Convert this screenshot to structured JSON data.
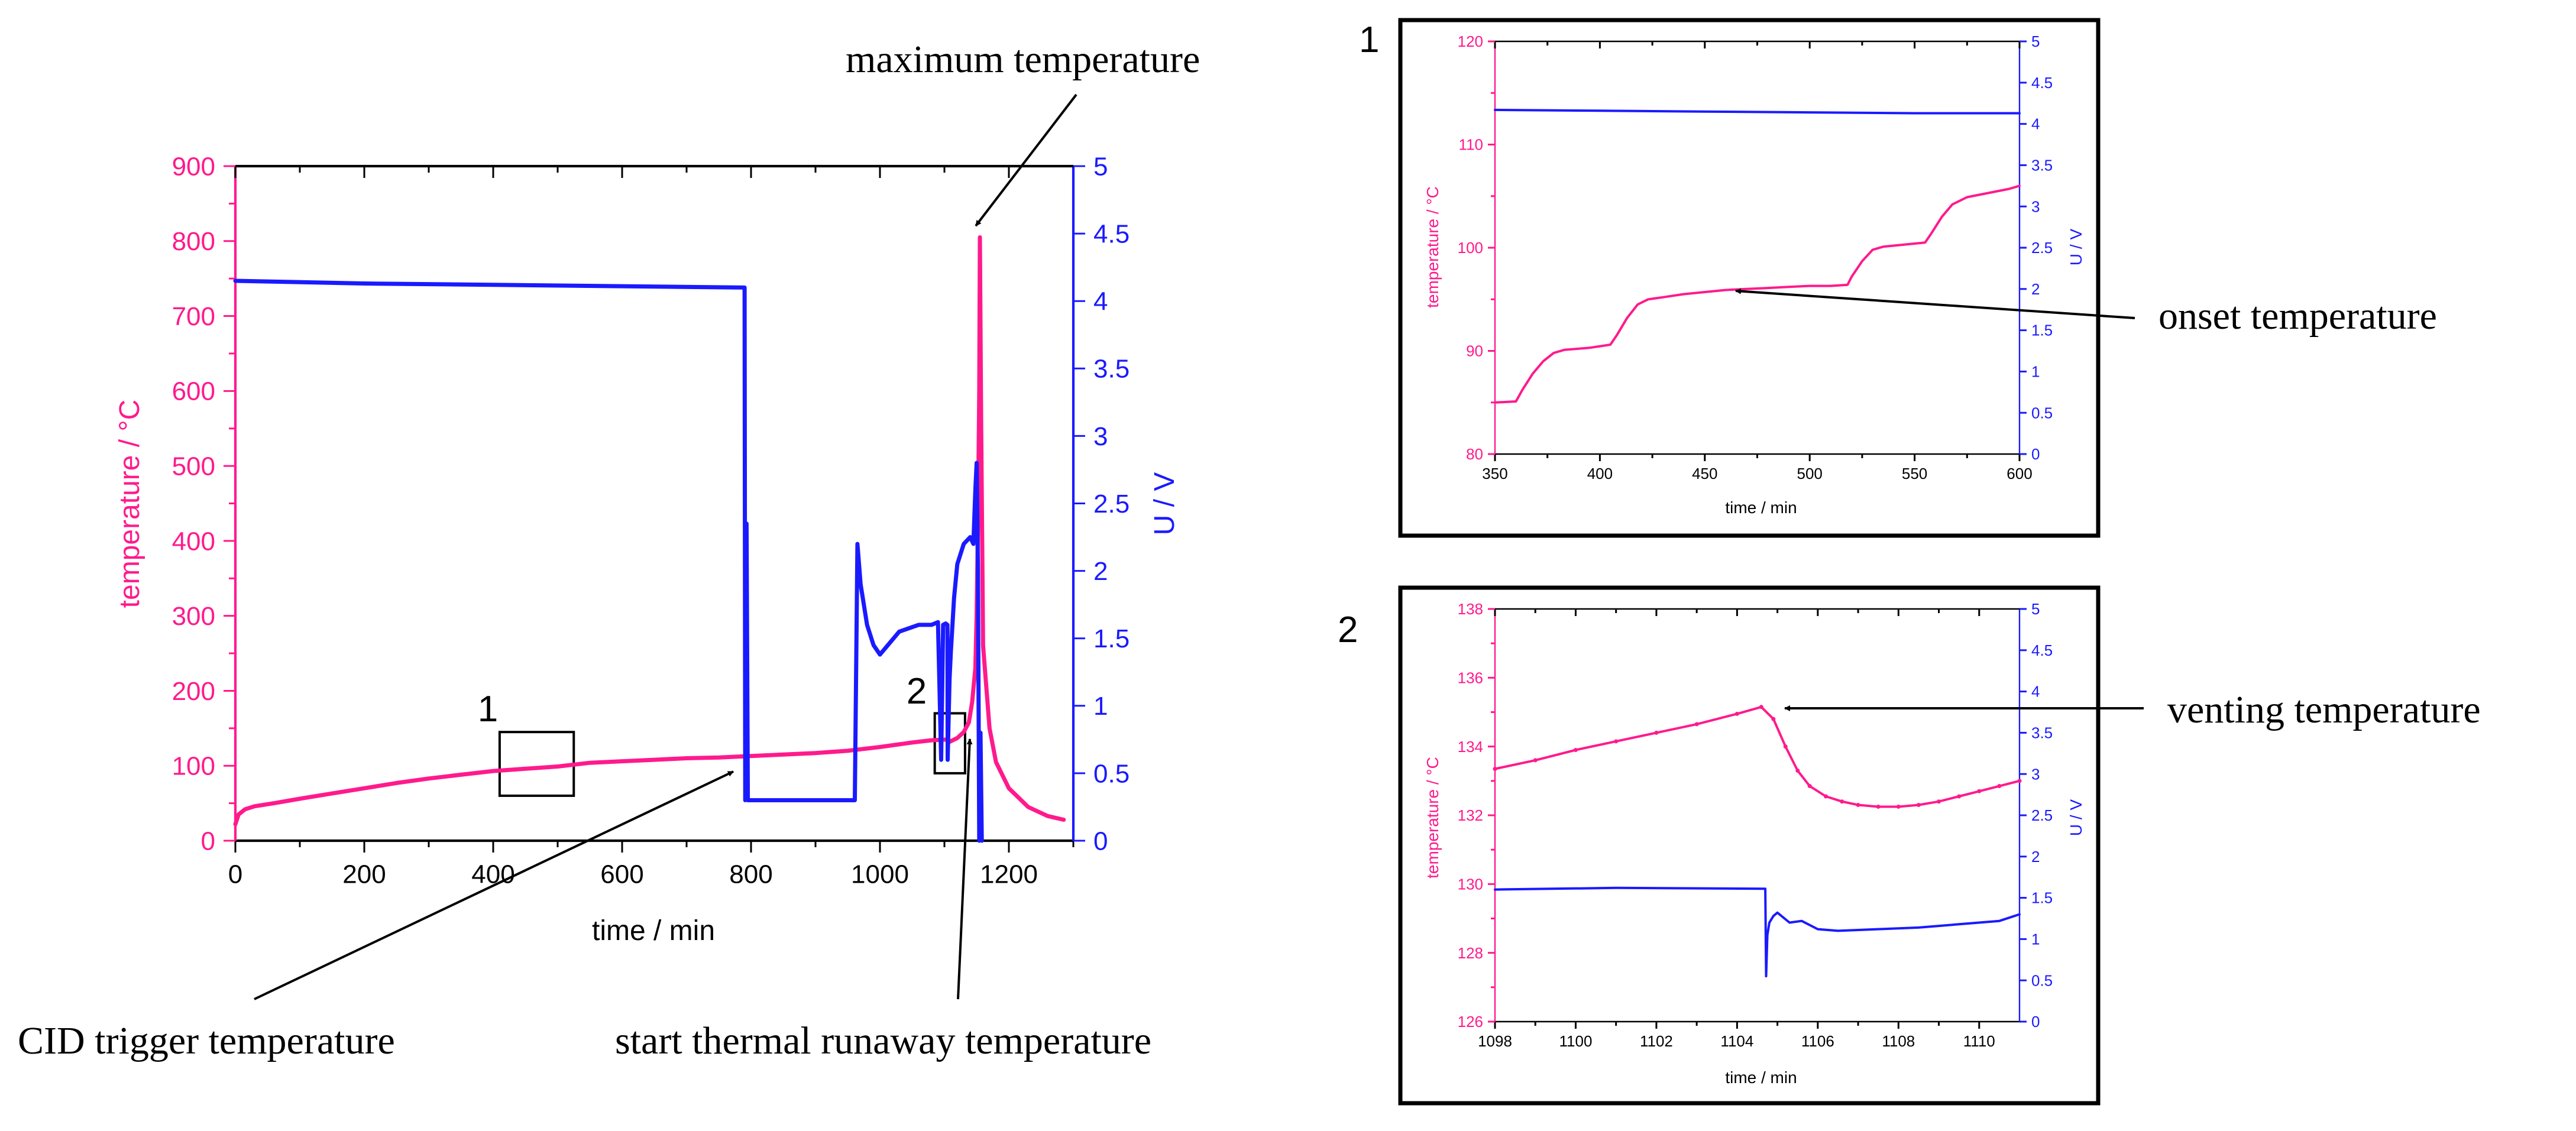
{
  "colors": {
    "temperature": "#ff1a8c",
    "voltage": "#1a1aff",
    "axis": "#000000"
  },
  "chart_data": [
    {
      "type": "line",
      "id": "main",
      "xlabel": "time / min",
      "ylabel": "temperature / °C",
      "y2label": "U / V",
      "xlim": [
        0,
        1300
      ],
      "ylim": [
        0,
        900
      ],
      "y2lim": [
        0,
        5
      ],
      "xticks": [
        0,
        200,
        400,
        600,
        800,
        1000,
        1200
      ],
      "yticks": [
        0,
        100,
        200,
        300,
        400,
        500,
        600,
        700,
        800,
        900
      ],
      "y2ticks": [
        0,
        0.5,
        1,
        1.5,
        2,
        2.5,
        3,
        3.5,
        4,
        4.5,
        5
      ],
      "series": [
        {
          "name": "temperature",
          "axis": "left",
          "x": [
            0,
            5,
            15,
            30,
            60,
            100,
            150,
            200,
            250,
            300,
            350,
            400,
            450,
            500,
            550,
            600,
            650,
            700,
            750,
            800,
            850,
            900,
            950,
            1000,
            1050,
            1080,
            1104.7,
            1108,
            1120,
            1130,
            1138,
            1143,
            1148,
            1150,
            1152,
            1154,
            1155,
            1157,
            1160,
            1170,
            1180,
            1200,
            1230,
            1260,
            1285
          ],
          "y": [
            22,
            35,
            42,
            46,
            50,
            56,
            63,
            70,
            77,
            83,
            88,
            93,
            96,
            99,
            104,
            106,
            108,
            110,
            111,
            113,
            115,
            117,
            120,
            125,
            131,
            134,
            135,
            132,
            137,
            145,
            158,
            185,
            230,
            300,
            420,
            600,
            805,
            560,
            260,
            150,
            105,
            70,
            45,
            33,
            28
          ]
        },
        {
          "name": "U",
          "axis": "right",
          "x": [
            0,
            200,
            400,
            600,
            790,
            791,
            793,
            795,
            960,
            961,
            965,
            970,
            980,
            990,
            1000,
            1030,
            1060,
            1080,
            1090,
            1095,
            1098,
            1102,
            1104.7,
            1105,
            1108,
            1110,
            1115,
            1120,
            1130,
            1140,
            1145,
            1148,
            1150,
            1152,
            1154,
            1156,
            1158
          ],
          "y": [
            4.15,
            4.13,
            4.12,
            4.11,
            4.1,
            0.3,
            2.35,
            0.3,
            0.3,
            0.3,
            2.2,
            1.9,
            1.6,
            1.45,
            1.38,
            1.55,
            1.6,
            1.6,
            1.62,
            0.6,
            1.6,
            1.61,
            1.6,
            0.6,
            1.2,
            1.4,
            1.8,
            2.05,
            2.2,
            2.25,
            2.2,
            2.6,
            2.8,
            2.0,
            0.0,
            0.8,
            0.0
          ]
        }
      ],
      "boxes": [
        {
          "label": "1",
          "x": [
            410,
            525
          ],
          "y": [
            60,
            145
          ]
        },
        {
          "label": "2",
          "x": [
            1085,
            1132
          ],
          "y": [
            90,
            170
          ]
        }
      ]
    },
    {
      "type": "line",
      "id": "inset1",
      "panel_label": "1",
      "xlabel": "time / min",
      "ylabel": "temperature / °C",
      "y2label": "U / V",
      "xlim": [
        350,
        600
      ],
      "ylim": [
        80,
        120
      ],
      "y2lim": [
        0,
        5
      ],
      "xticks": [
        350,
        400,
        450,
        500,
        550,
        600
      ],
      "yticks": [
        80,
        90,
        100,
        110,
        120
      ],
      "y2ticks": [
        0,
        0.5,
        1,
        1.5,
        2,
        2.5,
        3,
        3.5,
        4,
        4.5,
        5
      ],
      "series": [
        {
          "name": "temperature",
          "axis": "left",
          "x": [
            350,
            360,
            363,
            368,
            373,
            378,
            383,
            395,
            405,
            408,
            413,
            418,
            423,
            430,
            440,
            450,
            460,
            470,
            480,
            490,
            500,
            510,
            518,
            520,
            525,
            530,
            535,
            545,
            555,
            558,
            563,
            568,
            575,
            585,
            595,
            600
          ],
          "y": [
            85,
            85.1,
            86.2,
            87.8,
            89,
            89.8,
            90.1,
            90.3,
            90.6,
            91.5,
            93.2,
            94.5,
            95,
            95.2,
            95.5,
            95.7,
            95.9,
            96,
            96.1,
            96.2,
            96.3,
            96.3,
            96.4,
            97.2,
            98.7,
            99.8,
            100.1,
            100.3,
            100.5,
            101.4,
            103,
            104.2,
            104.9,
            105.3,
            105.7,
            106
          ]
        },
        {
          "name": "U",
          "axis": "right",
          "x": [
            350,
            400,
            450,
            500,
            550,
            600
          ],
          "y": [
            4.17,
            4.16,
            4.15,
            4.14,
            4.13,
            4.13
          ]
        }
      ],
      "annotation": "onset temperature"
    },
    {
      "type": "line",
      "id": "inset2",
      "panel_label": "2",
      "xlabel": "time / min",
      "ylabel": "temperature / °C",
      "y2label": "U / V",
      "xlim": [
        1098,
        1111
      ],
      "ylim": [
        126,
        138
      ],
      "y2lim": [
        0,
        5
      ],
      "xticks": [
        1098,
        1100,
        1102,
        1104,
        1106,
        1108,
        1110
      ],
      "yticks": [
        126,
        128,
        130,
        132,
        134,
        136,
        138
      ],
      "y2ticks": [
        0,
        0.5,
        1,
        1.5,
        2,
        2.5,
        3,
        3.5,
        4,
        4.5,
        5
      ],
      "series": [
        {
          "name": "temperature",
          "axis": "left",
          "x": [
            1098,
            1099,
            1100,
            1101,
            1102,
            1103,
            1104,
            1104.6,
            1104.9,
            1105.2,
            1105.5,
            1105.8,
            1106.2,
            1106.6,
            1107,
            1107.5,
            1108,
            1108.5,
            1109,
            1109.5,
            1110,
            1110.5,
            1111
          ],
          "y": [
            133.35,
            133.6,
            133.9,
            134.15,
            134.4,
            134.65,
            134.95,
            135.15,
            134.8,
            134.0,
            133.3,
            132.85,
            132.55,
            132.4,
            132.3,
            132.25,
            132.25,
            132.3,
            132.4,
            132.55,
            132.7,
            132.85,
            133.0
          ]
        },
        {
          "name": "U",
          "axis": "right",
          "x": [
            1098,
            1101,
            1104.7,
            1104.72,
            1104.75,
            1104.8,
            1104.9,
            1105,
            1105.3,
            1105.6,
            1106,
            1106.5,
            1107,
            1107.5,
            1108,
            1108.5,
            1109,
            1109.5,
            1110,
            1110.5,
            1111
          ],
          "y": [
            1.6,
            1.62,
            1.61,
            0.55,
            1.05,
            1.2,
            1.28,
            1.32,
            1.2,
            1.22,
            1.12,
            1.1,
            1.11,
            1.12,
            1.13,
            1.14,
            1.16,
            1.18,
            1.2,
            1.22,
            1.3
          ]
        }
      ],
      "annotation": "venting temperature"
    }
  ],
  "annotations": {
    "max_temp": "maximum temperature",
    "cid_trigger": "CID trigger temperature",
    "start_runaway": "start thermal runaway temperature",
    "onset": "onset temperature",
    "venting": "venting temperature"
  }
}
